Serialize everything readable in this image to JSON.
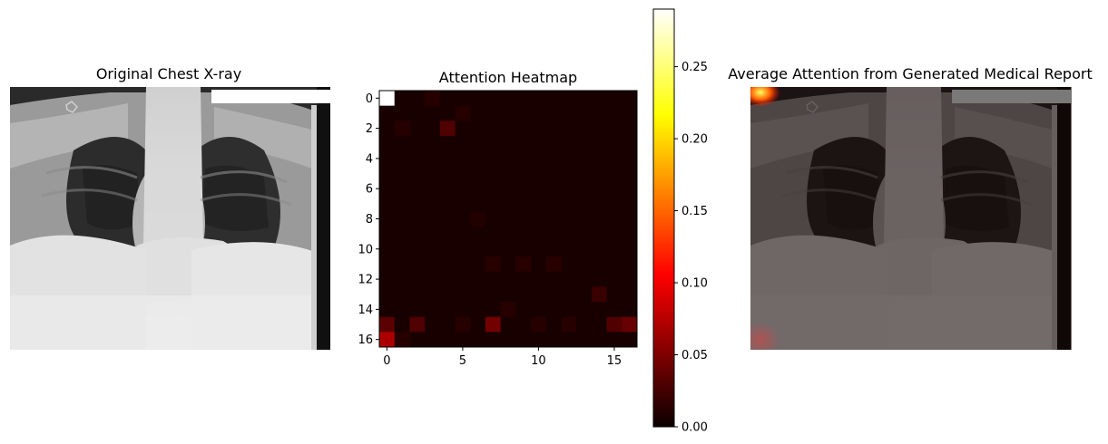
{
  "figure": {
    "panels": [
      {
        "title": "Original Chest X-ray"
      },
      {
        "title": "Attention Heatmap"
      },
      {
        "title": "Average Attention from Generated Medical Report"
      }
    ]
  },
  "chart_data": [
    {
      "type": "image",
      "title": "Original Chest X-ray",
      "axes_visible": false,
      "description_visible": "grayscale frontal chest radiograph"
    },
    {
      "type": "heatmap",
      "title": "Attention Heatmap",
      "grid_size": [
        17,
        17
      ],
      "xticks": [
        0,
        5,
        10,
        15
      ],
      "yticks": [
        0,
        2,
        4,
        6,
        8,
        10,
        12,
        14,
        16
      ],
      "colormap": "hot",
      "colorbar": {
        "ticks": [
          "0.00",
          "0.05",
          "0.10",
          "0.15",
          "0.20",
          "0.25"
        ],
        "range": [
          0,
          0.29
        ]
      },
      "background_value": 0.006,
      "cells": [
        {
          "row": 0,
          "col": 0,
          "value": 0.29
        },
        {
          "row": 0,
          "col": 3,
          "value": 0.012
        },
        {
          "row": 2,
          "col": 4,
          "value": 0.03
        },
        {
          "row": 2,
          "col": 1,
          "value": 0.012
        },
        {
          "row": 1,
          "col": 5,
          "value": 0.012
        },
        {
          "row": 8,
          "col": 6,
          "value": 0.01
        },
        {
          "row": 11,
          "col": 7,
          "value": 0.013
        },
        {
          "row": 11,
          "col": 9,
          "value": 0.013
        },
        {
          "row": 11,
          "col": 11,
          "value": 0.013
        },
        {
          "row": 13,
          "col": 14,
          "value": 0.02
        },
        {
          "row": 15,
          "col": 0,
          "value": 0.035
        },
        {
          "row": 15,
          "col": 2,
          "value": 0.03
        },
        {
          "row": 15,
          "col": 7,
          "value": 0.045
        },
        {
          "row": 15,
          "col": 15,
          "value": 0.03
        },
        {
          "row": 15,
          "col": 16,
          "value": 0.04
        },
        {
          "row": 15,
          "col": 5,
          "value": 0.012
        },
        {
          "row": 15,
          "col": 10,
          "value": 0.012
        },
        {
          "row": 15,
          "col": 12,
          "value": 0.012
        },
        {
          "row": 16,
          "col": 0,
          "value": 0.07
        },
        {
          "row": 16,
          "col": 1,
          "value": 0.012
        },
        {
          "row": 14,
          "col": 8,
          "value": 0.012
        }
      ]
    },
    {
      "type": "image",
      "title": "Average Attention from Generated Medical Report",
      "axes_visible": false,
      "description_visible": "chest radiograph overlaid with attention heatmap"
    }
  ]
}
